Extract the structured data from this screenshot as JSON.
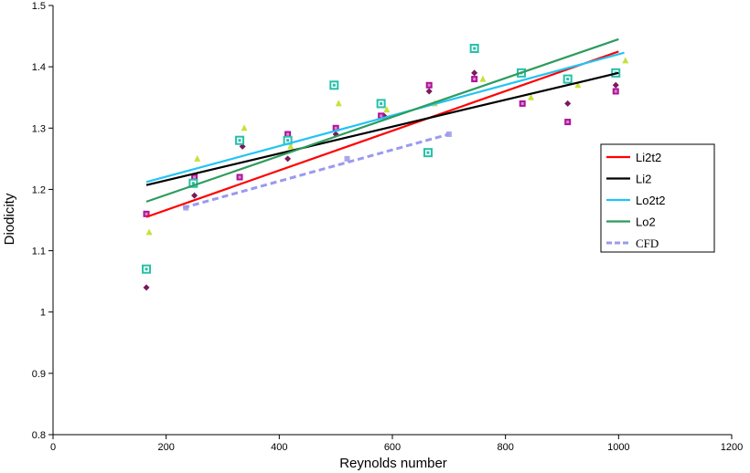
{
  "chart_data": {
    "type": "scatter",
    "title": "",
    "xlabel": "Reynolds number",
    "ylabel": "Diodicity",
    "xlim": [
      0,
      1200
    ],
    "ylim": [
      0.8,
      1.5
    ],
    "xticks": [
      "0",
      "200",
      "400",
      "600",
      "800",
      "1000",
      "1200"
    ],
    "yticks": [
      "0.8",
      "0.9",
      "1",
      "1.1",
      "1.2",
      "1.3",
      "1.4",
      "1.5"
    ],
    "grid": false,
    "legend_position": "right",
    "scatter_series": [
      {
        "marker": "diamond",
        "color": "#7a1a5a",
        "points": [
          [
            165,
            1.04
          ],
          [
            250,
            1.19
          ],
          [
            335,
            1.27
          ],
          [
            415,
            1.25
          ],
          [
            500,
            1.29
          ],
          [
            585,
            1.32
          ],
          [
            665,
            1.36
          ],
          [
            745,
            1.39
          ],
          [
            910,
            1.34
          ],
          [
            995,
            1.37
          ]
        ]
      },
      {
        "marker": "square",
        "color": "#b0129a",
        "points": [
          [
            165,
            1.16
          ],
          [
            250,
            1.22
          ],
          [
            330,
            1.22
          ],
          [
            415,
            1.29
          ],
          [
            500,
            1.3
          ],
          [
            580,
            1.32
          ],
          [
            665,
            1.37
          ],
          [
            745,
            1.38
          ],
          [
            830,
            1.34
          ],
          [
            910,
            1.31
          ],
          [
            995,
            1.36
          ]
        ]
      },
      {
        "marker": "square-outline",
        "color": "#26c0a8",
        "points": [
          [
            165,
            1.07
          ],
          [
            248,
            1.21
          ],
          [
            330,
            1.28
          ],
          [
            415,
            1.28
          ],
          [
            497,
            1.37
          ],
          [
            580,
            1.34
          ],
          [
            663,
            1.26
          ],
          [
            745,
            1.43
          ],
          [
            828,
            1.39
          ],
          [
            910,
            1.38
          ],
          [
            995,
            1.39
          ]
        ]
      },
      {
        "marker": "triangle",
        "color": "#c8e03a",
        "points": [
          [
            170,
            1.13
          ],
          [
            255,
            1.25
          ],
          [
            338,
            1.3
          ],
          [
            420,
            1.27
          ],
          [
            505,
            1.34
          ],
          [
            590,
            1.33
          ],
          [
            675,
            1.34
          ],
          [
            760,
            1.38
          ],
          [
            845,
            1.35
          ],
          [
            928,
            1.37
          ],
          [
            1012,
            1.41
          ]
        ]
      },
      {
        "marker": "square-small",
        "color": "#a8a8e8",
        "points": [
          [
            235,
            1.17
          ],
          [
            520,
            1.25
          ],
          [
            700,
            1.29
          ]
        ]
      }
    ],
    "series": [
      {
        "name": "Li2t2",
        "color": "#ff0000",
        "style": "solid",
        "x": [
          165,
          1000
        ],
        "y": [
          1.155,
          1.425
        ]
      },
      {
        "name": "Li2",
        "color": "#000000",
        "style": "solid",
        "x": [
          165,
          1000
        ],
        "y": [
          1.207,
          1.39
        ]
      },
      {
        "name": "Lo2t2",
        "color": "#22c4f4",
        "style": "solid",
        "x": [
          165,
          1010
        ],
        "y": [
          1.212,
          1.423
        ]
      },
      {
        "name": "Lo2",
        "color": "#2e9b5e",
        "style": "solid",
        "x": [
          165,
          1000
        ],
        "y": [
          1.18,
          1.445
        ]
      },
      {
        "name": "CFD",
        "color": "#9a9af0",
        "style": "dashed",
        "x": [
          230,
          700
        ],
        "y": [
          1.17,
          1.29
        ]
      }
    ]
  }
}
